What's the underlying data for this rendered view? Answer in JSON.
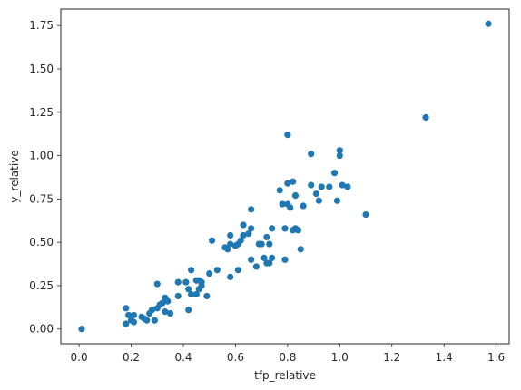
{
  "chart_data": {
    "type": "scatter",
    "xlabel": "tfp_relative",
    "ylabel": "y_relative",
    "xlim": [
      -0.07,
      1.65
    ],
    "ylim": [
      -0.085,
      1.845
    ],
    "xticks": [
      0.0,
      0.2,
      0.4,
      0.6,
      0.8,
      1.0,
      1.2,
      1.4,
      1.6
    ],
    "xtick_labels": [
      "0.0",
      "0.2",
      "0.4",
      "0.6",
      "0.8",
      "1.0",
      "1.2",
      "1.4",
      "1.6"
    ],
    "yticks": [
      0.0,
      0.25,
      0.5,
      0.75,
      1.0,
      1.25,
      1.5,
      1.75
    ],
    "ytick_labels": [
      "0.00",
      "0.25",
      "0.50",
      "0.75",
      "1.00",
      "1.25",
      "1.50",
      "1.75"
    ],
    "grid": false,
    "marker_color": "#1f77b4",
    "points": [
      [
        0.01,
        0.0
      ],
      [
        0.18,
        0.12
      ],
      [
        0.18,
        0.03
      ],
      [
        0.19,
        0.08
      ],
      [
        0.2,
        0.05
      ],
      [
        0.21,
        0.04
      ],
      [
        0.21,
        0.08
      ],
      [
        0.24,
        0.07
      ],
      [
        0.25,
        0.06
      ],
      [
        0.26,
        0.05
      ],
      [
        0.27,
        0.09
      ],
      [
        0.28,
        0.11
      ],
      [
        0.29,
        0.05
      ],
      [
        0.3,
        0.26
      ],
      [
        0.3,
        0.12
      ],
      [
        0.31,
        0.14
      ],
      [
        0.32,
        0.15
      ],
      [
        0.33,
        0.1
      ],
      [
        0.33,
        0.18
      ],
      [
        0.34,
        0.16
      ],
      [
        0.35,
        0.09
      ],
      [
        0.38,
        0.19
      ],
      [
        0.38,
        0.27
      ],
      [
        0.41,
        0.27
      ],
      [
        0.42,
        0.23
      ],
      [
        0.42,
        0.11
      ],
      [
        0.43,
        0.2
      ],
      [
        0.43,
        0.34
      ],
      [
        0.45,
        0.28
      ],
      [
        0.45,
        0.2
      ],
      [
        0.46,
        0.28
      ],
      [
        0.46,
        0.23
      ],
      [
        0.47,
        0.25
      ],
      [
        0.47,
        0.27
      ],
      [
        0.49,
        0.19
      ],
      [
        0.5,
        0.32
      ],
      [
        0.51,
        0.51
      ],
      [
        0.53,
        0.34
      ],
      [
        0.56,
        0.47
      ],
      [
        0.57,
        0.46
      ],
      [
        0.58,
        0.3
      ],
      [
        0.58,
        0.49
      ],
      [
        0.58,
        0.54
      ],
      [
        0.6,
        0.48
      ],
      [
        0.61,
        0.34
      ],
      [
        0.61,
        0.49
      ],
      [
        0.62,
        0.51
      ],
      [
        0.63,
        0.54
      ],
      [
        0.63,
        0.6
      ],
      [
        0.65,
        0.55
      ],
      [
        0.66,
        0.4
      ],
      [
        0.66,
        0.69
      ],
      [
        0.66,
        0.58
      ],
      [
        0.68,
        0.36
      ],
      [
        0.69,
        0.49
      ],
      [
        0.7,
        0.49
      ],
      [
        0.71,
        0.41
      ],
      [
        0.72,
        0.38
      ],
      [
        0.72,
        0.53
      ],
      [
        0.73,
        0.38
      ],
      [
        0.73,
        0.49
      ],
      [
        0.74,
        0.58
      ],
      [
        0.74,
        0.41
      ],
      [
        0.77,
        0.8
      ],
      [
        0.78,
        0.72
      ],
      [
        0.79,
        0.4
      ],
      [
        0.79,
        0.58
      ],
      [
        0.8,
        1.12
      ],
      [
        0.8,
        0.84
      ],
      [
        0.8,
        0.72
      ],
      [
        0.81,
        0.7
      ],
      [
        0.82,
        0.57
      ],
      [
        0.82,
        0.85
      ],
      [
        0.83,
        0.77
      ],
      [
        0.83,
        0.58
      ],
      [
        0.84,
        0.57
      ],
      [
        0.85,
        0.46
      ],
      [
        0.86,
        0.71
      ],
      [
        0.89,
        1.01
      ],
      [
        0.89,
        0.83
      ],
      [
        0.91,
        0.78
      ],
      [
        0.92,
        0.74
      ],
      [
        0.93,
        0.82
      ],
      [
        0.96,
        0.82
      ],
      [
        0.98,
        0.9
      ],
      [
        0.99,
        0.74
      ],
      [
        1.0,
        1.0
      ],
      [
        1.0,
        1.03
      ],
      [
        1.01,
        0.83
      ],
      [
        1.03,
        0.82
      ],
      [
        1.1,
        0.66
      ],
      [
        1.33,
        1.22
      ],
      [
        1.57,
        1.76
      ]
    ]
  }
}
